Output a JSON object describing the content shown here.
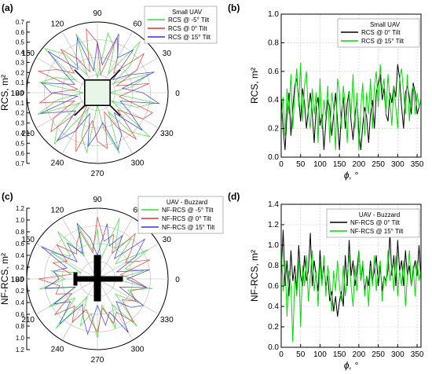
{
  "chart_data": [
    {
      "panel_label": "(a)",
      "type": "polar",
      "ylabel": "RCS, m²",
      "angle_ticks": [
        0,
        30,
        60,
        90,
        120,
        150,
        180,
        210,
        240,
        270,
        300,
        330
      ],
      "radial_ticks": [
        0.7,
        0.6,
        0.5,
        0.4,
        0.3,
        0.2,
        0.1,
        0.0,
        0.1,
        0.2,
        0.3,
        0.4,
        0.5,
        0.6,
        0.7
      ],
      "rlim": [
        0,
        0.7
      ],
      "legend_title": "Small UAV",
      "legend_position": "top-right",
      "series": [
        {
          "name": "RCS @ -5° Tilt",
          "color": "#33dd33",
          "values": [
            0.12,
            0.35,
            0.55,
            0.18,
            0.42,
            0.66,
            0.22,
            0.48,
            0.6,
            0.15,
            0.38,
            0.62,
            0.2,
            0.5,
            0.68,
            0.25,
            0.44,
            0.58,
            0.14,
            0.4,
            0.63,
            0.2,
            0.52,
            0.66,
            0.18,
            0.46,
            0.6,
            0.12,
            0.36,
            0.64,
            0.22,
            0.5,
            0.68,
            0.16,
            0.42,
            0.58
          ]
        },
        {
          "name": "RCS @ 0° Tilt",
          "color": "#dd3333",
          "values": [
            0.3,
            0.52,
            0.2,
            0.45,
            0.6,
            0.25,
            0.4,
            0.58,
            0.18,
            0.5,
            0.64,
            0.22,
            0.38,
            0.56,
            0.3,
            0.46,
            0.62,
            0.2,
            0.44,
            0.58,
            0.24,
            0.5,
            0.6,
            0.16,
            0.42,
            0.62,
            0.28,
            0.48,
            0.56,
            0.2,
            0.4,
            0.6,
            0.26,
            0.52,
            0.58,
            0.22
          ]
        },
        {
          "name": "RCS @ 15° Tilt",
          "color": "#3333dd",
          "values": [
            0.45,
            0.25,
            0.6,
            0.35,
            0.2,
            0.55,
            0.4,
            0.62,
            0.28,
            0.5,
            0.22,
            0.58,
            0.42,
            0.3,
            0.64,
            0.36,
            0.24,
            0.56,
            0.46,
            0.2,
            0.6,
            0.38,
            0.28,
            0.62,
            0.44,
            0.22,
            0.54,
            0.4,
            0.3,
            0.6,
            0.48,
            0.26,
            0.58,
            0.36,
            0.24,
            0.62
          ]
        }
      ]
    },
    {
      "panel_label": "(b)",
      "type": "line",
      "xlabel": "ϕ, °",
      "ylabel": "RCS, m²",
      "xlim": [
        0,
        360
      ],
      "ylim": [
        0,
        1.0
      ],
      "x_ticks": [
        0,
        50,
        100,
        150,
        200,
        250,
        300,
        350
      ],
      "y_ticks": [
        0.0,
        0.2,
        0.4,
        0.6,
        0.8,
        1.0
      ],
      "legend_title": "Small UAV",
      "legend_position": "top-right",
      "x_step": 5,
      "series": [
        {
          "name": "RCS @ 0° Tilt",
          "color": "#000000",
          "values": [
            0.42,
            0.2,
            0.05,
            0.3,
            0.45,
            0.15,
            0.35,
            0.5,
            0.55,
            0.42,
            0.25,
            0.48,
            0.38,
            0.2,
            0.33,
            0.45,
            0.3,
            0.1,
            0.35,
            0.42,
            0.22,
            0.3,
            0.05,
            0.25,
            0.4,
            0.35,
            0.15,
            0.3,
            0.45,
            0.25,
            0.05,
            0.3,
            0.42,
            0.2,
            0.38,
            0.46,
            0.25,
            0.12,
            0.3,
            0.4,
            0.18,
            0.05,
            0.22,
            0.35,
            0.28,
            0.1,
            0.3,
            0.4,
            0.2,
            0.45,
            0.52,
            0.58,
            0.4,
            0.48,
            0.3,
            0.25,
            0.45,
            0.38,
            0.5,
            0.42,
            0.65,
            0.55,
            0.35,
            0.2,
            0.45,
            0.5,
            0.42,
            0.3,
            0.52,
            0.45,
            0.3,
            0.35,
            0.4
          ]
        },
        {
          "name": "RCS @ 15° Tilt",
          "color": "#00dd00",
          "values": [
            0.25,
            0.42,
            0.15,
            0.48,
            0.3,
            0.58,
            0.2,
            0.45,
            0.62,
            0.35,
            0.66,
            0.25,
            0.5,
            0.6,
            0.3,
            0.2,
            0.48,
            0.3,
            0.45,
            0.1,
            0.55,
            0.2,
            0.4,
            0.28,
            0.5,
            0.1,
            0.45,
            0.35,
            0.05,
            0.55,
            0.45,
            0.2,
            0.5,
            0.35,
            0.1,
            0.45,
            0.3,
            0.58,
            0.2,
            0.45,
            0.05,
            0.35,
            0.52,
            0.15,
            0.45,
            0.3,
            0.55,
            0.2,
            0.5,
            0.6,
            0.35,
            0.65,
            0.45,
            0.55,
            0.3,
            0.58,
            0.4,
            0.22,
            0.5,
            0.35,
            0.2,
            0.55,
            0.62,
            0.45,
            0.3,
            0.58,
            0.25,
            0.45,
            0.5,
            0.3,
            0.45,
            0.35,
            0.4
          ]
        }
      ]
    },
    {
      "panel_label": "(c)",
      "type": "polar",
      "ylabel": "NF-RCS, m²",
      "angle_ticks": [
        0,
        30,
        60,
        90,
        120,
        150,
        180,
        210,
        240,
        270,
        300,
        330
      ],
      "radial_ticks": [
        1.2,
        1.0,
        0.8,
        0.6,
        0.4,
        0.2,
        0.0,
        0.2,
        0.4,
        0.6,
        0.8,
        1.0,
        1.2
      ],
      "rlim": [
        0,
        1.2
      ],
      "legend_title": "UAV - Buzzard",
      "legend_position": "top-right",
      "series": [
        {
          "name": "NF-RCS @ -5° Tilt",
          "color": "#33dd33",
          "values": [
            0.3,
            0.8,
            0.5,
            1.0,
            0.4,
            0.9,
            0.6,
            1.1,
            0.35,
            0.85,
            0.5,
            0.95,
            0.45,
            1.05,
            0.6,
            0.9,
            0.3,
            0.8,
            0.55,
            1.0,
            0.4,
            0.95,
            0.5,
            1.1,
            0.35,
            0.85,
            0.6,
            1.0,
            0.45,
            0.9,
            0.5,
            1.05,
            0.4,
            0.8,
            0.55,
            0.95
          ]
        },
        {
          "name": "NF-RCS @ 0° Tilt",
          "color": "#dd3333",
          "values": [
            0.6,
            0.4,
            0.95,
            0.55,
            0.75,
            1.0,
            0.5,
            0.8,
            0.65,
            1.05,
            0.45,
            0.85,
            0.7,
            0.55,
            0.9,
            0.6,
            0.8,
            0.45,
            1.0,
            0.65,
            0.75,
            0.5,
            0.95,
            0.6,
            0.85,
            0.55,
            0.7,
            0.9,
            0.5,
            0.8,
            0.65,
            0.95,
            0.55,
            0.75,
            0.6,
            0.85
          ]
        },
        {
          "name": "NF-RCS @ 15° Tilt",
          "color": "#3333dd",
          "values": [
            0.5,
            0.9,
            0.35,
            0.75,
            1.05,
            0.45,
            0.85,
            0.6,
            0.95,
            0.4,
            0.7,
            1.0,
            0.5,
            0.8,
            0.45,
            1.1,
            0.55,
            0.75,
            0.65,
            0.9,
            0.4,
            0.85,
            0.6,
            1.0,
            0.5,
            0.7,
            0.95,
            0.45,
            0.8,
            0.6,
            1.05,
            0.5,
            0.75,
            0.9,
            0.4,
            0.85
          ]
        }
      ]
    },
    {
      "panel_label": "(d)",
      "type": "line",
      "xlabel": "ϕ, °",
      "ylabel": "NF-RCS, m²",
      "xlim": [
        0,
        360
      ],
      "ylim": [
        0,
        1.4
      ],
      "x_ticks": [
        0,
        50,
        100,
        150,
        200,
        250,
        300,
        350
      ],
      "y_ticks": [
        0.0,
        0.2,
        0.4,
        0.6,
        0.8,
        1.0,
        1.2,
        1.4
      ],
      "legend_title": "UAV - Buzzard",
      "legend_position": "top-right",
      "x_step": 5,
      "series": [
        {
          "name": "NF-RCS @ 0° Tilt",
          "color": "#000000",
          "values": [
            0.7,
            1.15,
            0.6,
            0.85,
            0.5,
            0.95,
            0.65,
            0.8,
            0.55,
            1.0,
            0.7,
            0.6,
            0.9,
            0.65,
            0.75,
            1.12,
            0.6,
            0.85,
            0.7,
            0.55,
            0.95,
            0.65,
            0.8,
            0.6,
            0.7,
            0.45,
            0.55,
            0.35,
            0.5,
            0.3,
            0.45,
            0.55,
            0.4,
            0.9,
            0.6,
            1.05,
            0.7,
            0.85,
            0.6,
            0.75,
            0.95,
            0.65,
            0.8,
            0.55,
            0.7,
            0.6,
            0.85,
            0.65,
            0.75,
            0.9,
            0.6,
            0.8,
            0.55,
            0.7,
            0.65,
            0.75,
            1.12,
            0.7,
            0.9,
            0.6,
            1.05,
            0.75,
            0.85,
            0.6,
            0.95,
            0.7,
            0.8,
            0.6,
            0.75,
            0.85,
            0.7,
            1.0,
            0.65
          ]
        },
        {
          "name": "NF-RCS @ 15° Tilt",
          "color": "#00dd00",
          "values": [
            1.0,
            0.55,
            0.85,
            0.3,
            0.75,
            0.6,
            0.05,
            0.7,
            0.5,
            0.85,
            0.2,
            0.8,
            0.6,
            0.9,
            0.45,
            0.7,
            0.95,
            0.55,
            0.75,
            0.4,
            0.85,
            0.6,
            0.9,
            0.5,
            0.8,
            0.65,
            0.35,
            0.75,
            0.55,
            0.85,
            0.6,
            0.45,
            0.8,
            0.5,
            0.7,
            0.9,
            0.6,
            0.4,
            0.8,
            0.55,
            0.95,
            0.65,
            0.85,
            0.5,
            0.7,
            0.4,
            0.8,
            0.6,
            0.9,
            0.55,
            0.75,
            0.85,
            0.45,
            0.7,
            0.6,
            0.95,
            0.65,
            0.8,
            0.55,
            0.9,
            0.5,
            0.75,
            0.6,
            0.85,
            0.4,
            0.7,
            0.95,
            0.6,
            0.8,
            0.5,
            0.85,
            0.65,
            0.75
          ]
        }
      ]
    }
  ]
}
